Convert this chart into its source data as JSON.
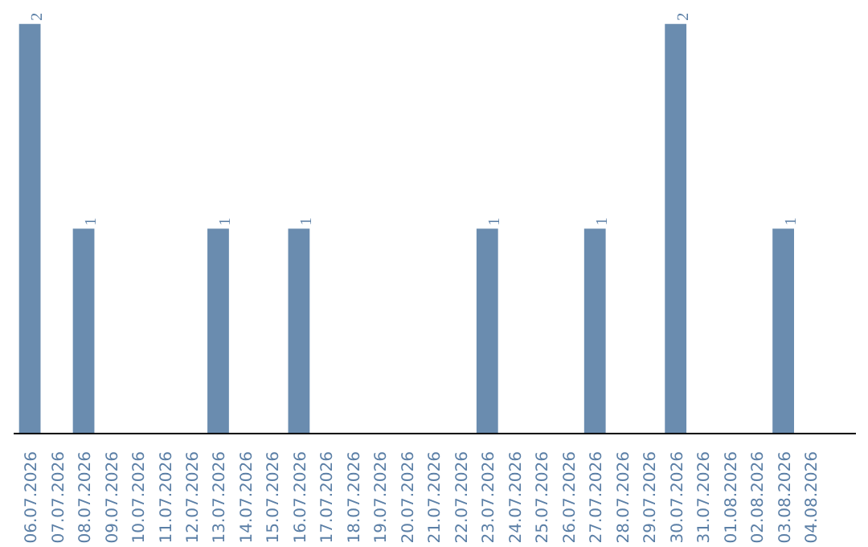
{
  "chart_data": {
    "type": "bar",
    "categories": [
      "06.07.2026",
      "07.07.2026",
      "08.07.2026",
      "09.07.2026",
      "10.07.2026",
      "11.07.2026",
      "12.07.2026",
      "13.07.2026",
      "14.07.2026",
      "15.07.2026",
      "16.07.2026",
      "17.07.2026",
      "18.07.2026",
      "19.07.2026",
      "20.07.2026",
      "21.07.2026",
      "22.07.2026",
      "23.07.2026",
      "24.07.2026",
      "25.07.2026",
      "26.07.2026",
      "27.07.2026",
      "28.07.2026",
      "29.07.2026",
      "30.07.2026",
      "31.07.2026",
      "01.08.2026",
      "02.08.2026",
      "03.08.2026",
      "04.08.2026"
    ],
    "values": [
      2,
      null,
      1,
      null,
      null,
      null,
      null,
      1,
      null,
      null,
      1,
      null,
      null,
      null,
      null,
      null,
      null,
      1,
      null,
      null,
      null,
      1,
      null,
      null,
      2,
      null,
      null,
      null,
      1,
      null
    ],
    "color": "#6a8caf",
    "data_labels": true,
    "tick_labels": "x"
  }
}
